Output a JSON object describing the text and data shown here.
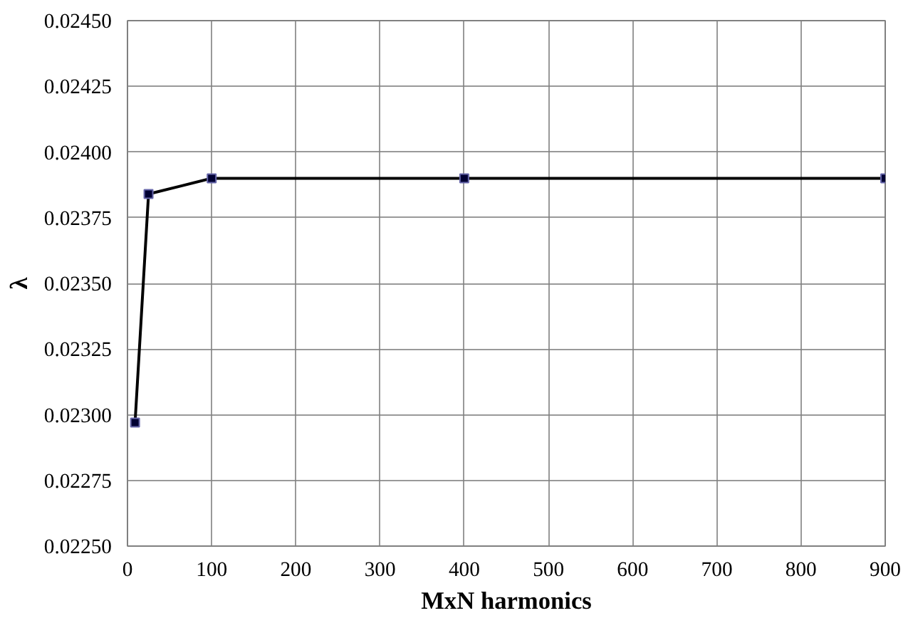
{
  "chart_data": {
    "type": "line",
    "xlabel": "MxN harmonics",
    "ylabel": "λ",
    "x": [
      9,
      25,
      100,
      400,
      900
    ],
    "series": [
      {
        "color": "#000000",
        "values": [
          0.02297,
          0.02384,
          0.0239,
          0.0239,
          0.0239
        ]
      }
    ],
    "xlim": [
      0,
      900
    ],
    "xticks": [
      0,
      100,
      200,
      300,
      400,
      500,
      600,
      700,
      800,
      900
    ],
    "ylim": [
      0.0225,
      0.0245
    ],
    "yticks": [
      {
        "value": 0.0225,
        "label": "0.02250"
      },
      {
        "value": 0.02275,
        "label": "0.02275"
      },
      {
        "value": 0.023,
        "label": "0.02300"
      },
      {
        "value": 0.02325,
        "label": "0.02325"
      },
      {
        "value": 0.0235,
        "label": "0.02350"
      },
      {
        "value": 0.02375,
        "label": "0.02375"
      },
      {
        "value": 0.024,
        "label": "0.02400"
      },
      {
        "value": 0.02425,
        "label": "0.02425"
      },
      {
        "value": 0.0245,
        "label": "0.02450"
      }
    ],
    "grid": true,
    "marker": "square",
    "line_style": "solid"
  }
}
